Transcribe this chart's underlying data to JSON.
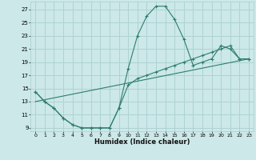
{
  "xlabel": "Humidex (Indice chaleur)",
  "bg_color": "#cce8e8",
  "grid_color": "#aacfcf",
  "line_color": "#2e7d6e",
  "xlim": [
    -0.5,
    23.5
  ],
  "ylim": [
    8.5,
    28.2
  ],
  "xticks": [
    0,
    1,
    2,
    3,
    4,
    5,
    6,
    7,
    8,
    9,
    10,
    11,
    12,
    13,
    14,
    15,
    16,
    17,
    18,
    19,
    20,
    21,
    22,
    23
  ],
  "yticks": [
    9,
    11,
    13,
    15,
    17,
    19,
    21,
    23,
    25,
    27
  ],
  "line1_x": [
    0,
    1,
    2,
    3,
    4,
    5,
    6,
    7,
    8,
    9,
    10,
    11,
    12,
    13,
    14,
    15,
    16,
    17,
    18,
    19,
    20,
    21,
    22,
    23
  ],
  "line1_y": [
    14.5,
    13.0,
    12.0,
    10.5,
    9.5,
    9.0,
    9.0,
    9.0,
    9.0,
    12.0,
    18.0,
    23.0,
    26.0,
    27.5,
    27.5,
    25.5,
    22.5,
    18.5,
    19.0,
    19.5,
    21.5,
    21.0,
    19.5,
    19.5
  ],
  "line2_x": [
    0,
    1,
    2,
    3,
    4,
    5,
    6,
    7,
    8,
    9,
    10,
    11,
    12,
    13,
    14,
    15,
    16,
    17,
    18,
    19,
    20,
    21,
    22,
    23
  ],
  "line2_y": [
    14.5,
    13.0,
    12.0,
    10.5,
    9.5,
    9.0,
    9.0,
    9.0,
    9.0,
    12.0,
    15.5,
    16.5,
    17.0,
    17.5,
    18.0,
    18.5,
    19.0,
    19.5,
    20.0,
    20.5,
    21.0,
    21.5,
    19.5,
    19.5
  ],
  "line3_x": [
    0,
    23
  ],
  "line3_y": [
    13.0,
    19.5
  ]
}
